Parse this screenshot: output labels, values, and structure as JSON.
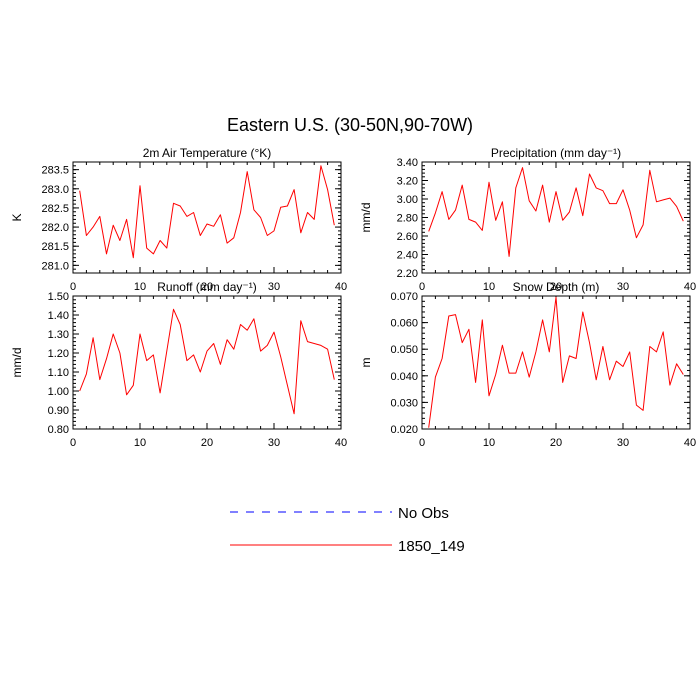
{
  "title": "Eastern U.S. (30-50N,90-70W)",
  "colors": {
    "model": "#ff0000",
    "obs": "#0000ff"
  },
  "legend": [
    {
      "label": "No Obs",
      "color": "#0000ff",
      "style": "dashed"
    },
    {
      "label": "1850_149",
      "color": "#ff0000",
      "style": "solid"
    }
  ],
  "chart_data": [
    {
      "type": "line",
      "title": "2m Air Temperature (°K)",
      "ylabel": "K",
      "xlim": [
        0,
        40
      ],
      "ylim": [
        280.8,
        283.7
      ],
      "xticks": [
        "0",
        "10",
        "20",
        "30",
        "40"
      ],
      "yticks": [
        "281.0",
        "281.5",
        "282.0",
        "282.5",
        "283.0",
        "283.5"
      ],
      "series": [
        {
          "name": "1850_149",
          "x": [
            1,
            2,
            3,
            4,
            5,
            6,
            7,
            8,
            9,
            10,
            11,
            12,
            13,
            14,
            15,
            16,
            17,
            18,
            19,
            20,
            21,
            22,
            23,
            24,
            25,
            26,
            27,
            28,
            29,
            30,
            31,
            32,
            33,
            34,
            35,
            36,
            37,
            38,
            39
          ],
          "values": [
            282.95,
            281.78,
            282.0,
            282.28,
            281.3,
            282.05,
            281.65,
            282.2,
            281.2,
            283.08,
            281.45,
            281.3,
            281.65,
            281.45,
            282.62,
            282.55,
            282.28,
            282.38,
            281.78,
            282.08,
            282.02,
            282.32,
            281.58,
            281.72,
            282.38,
            283.45,
            282.45,
            282.25,
            281.78,
            281.9,
            282.52,
            282.55,
            282.98,
            281.85,
            282.38,
            282.2,
            283.6,
            282.98,
            282.05
          ]
        }
      ]
    },
    {
      "type": "line",
      "title": "Precipitation (mm day⁻¹)",
      "ylabel": "mm/d",
      "xlim": [
        0,
        40
      ],
      "ylim": [
        2.2,
        3.4
      ],
      "xticks": [
        "0",
        "10",
        "20",
        "30",
        "40"
      ],
      "yticks": [
        "2.20",
        "2.40",
        "2.60",
        "2.80",
        "3.00",
        "3.20",
        "3.40"
      ],
      "series": [
        {
          "name": "1850_149",
          "x": [
            1,
            2,
            3,
            4,
            5,
            6,
            7,
            8,
            9,
            10,
            11,
            12,
            13,
            14,
            15,
            16,
            17,
            18,
            19,
            20,
            21,
            22,
            23,
            24,
            25,
            26,
            27,
            28,
            29,
            30,
            31,
            32,
            33,
            34,
            35,
            36,
            37,
            38,
            39
          ],
          "values": [
            2.65,
            2.85,
            3.08,
            2.78,
            2.88,
            3.15,
            2.78,
            2.75,
            2.66,
            3.18,
            2.77,
            2.97,
            2.38,
            3.12,
            3.34,
            2.98,
            2.87,
            3.15,
            2.75,
            3.08,
            2.77,
            2.86,
            3.12,
            2.82,
            3.27,
            3.12,
            3.09,
            2.95,
            2.95,
            3.1,
            2.88,
            2.58,
            2.72,
            3.31,
            2.97,
            2.99,
            3.01,
            2.92,
            2.76
          ]
        }
      ]
    },
    {
      "type": "line",
      "title": "Runoff (mm day⁻¹)",
      "ylabel": "mm/d",
      "xlim": [
        0,
        40
      ],
      "ylim": [
        0.8,
        1.5
      ],
      "xticks": [
        "0",
        "10",
        "20",
        "30",
        "40"
      ],
      "yticks": [
        "0.80",
        "0.90",
        "1.00",
        "1.10",
        "1.20",
        "1.30",
        "1.40",
        "1.50"
      ],
      "series": [
        {
          "name": "1850_149",
          "x": [
            1,
            2,
            3,
            4,
            5,
            6,
            7,
            8,
            9,
            10,
            11,
            12,
            13,
            14,
            15,
            16,
            17,
            18,
            19,
            20,
            21,
            22,
            23,
            24,
            25,
            26,
            27,
            28,
            29,
            30,
            31,
            32,
            33,
            34,
            35,
            36,
            37,
            38,
            39
          ],
          "values": [
            1.0,
            1.09,
            1.28,
            1.06,
            1.17,
            1.3,
            1.2,
            0.98,
            1.03,
            1.3,
            1.16,
            1.19,
            0.99,
            1.21,
            1.43,
            1.35,
            1.16,
            1.19,
            1.1,
            1.21,
            1.25,
            1.14,
            1.27,
            1.22,
            1.35,
            1.32,
            1.38,
            1.21,
            1.24,
            1.31,
            1.18,
            1.03,
            0.88,
            1.37,
            1.26,
            1.25,
            1.24,
            1.22,
            1.06
          ]
        }
      ]
    },
    {
      "type": "line",
      "title": "Snow Depth (m)",
      "ylabel": "m",
      "xlim": [
        0,
        40
      ],
      "ylim": [
        0.02,
        0.07
      ],
      "xticks": [
        "0",
        "10",
        "20",
        "30",
        "40"
      ],
      "yticks": [
        "0.020",
        "0.030",
        "0.040",
        "0.050",
        "0.060",
        "0.070"
      ],
      "series": [
        {
          "name": "1850_149",
          "x": [
            1,
            2,
            3,
            4,
            5,
            6,
            7,
            8,
            9,
            10,
            11,
            12,
            13,
            14,
            15,
            16,
            17,
            18,
            19,
            20,
            21,
            22,
            23,
            24,
            25,
            26,
            27,
            28,
            29,
            30,
            31,
            32,
            33,
            34,
            35,
            36,
            37,
            38,
            39
          ],
          "values": [
            0.0205,
            0.0395,
            0.0465,
            0.0625,
            0.063,
            0.0525,
            0.0575,
            0.0375,
            0.061,
            0.0325,
            0.0405,
            0.0515,
            0.041,
            0.041,
            0.049,
            0.0395,
            0.049,
            0.061,
            0.049,
            0.0695,
            0.0375,
            0.0475,
            0.0465,
            0.064,
            0.0525,
            0.0385,
            0.051,
            0.0385,
            0.0455,
            0.0435,
            0.049,
            0.029,
            0.027,
            0.051,
            0.049,
            0.0565,
            0.0365,
            0.0445,
            0.0405
          ]
        }
      ]
    }
  ]
}
